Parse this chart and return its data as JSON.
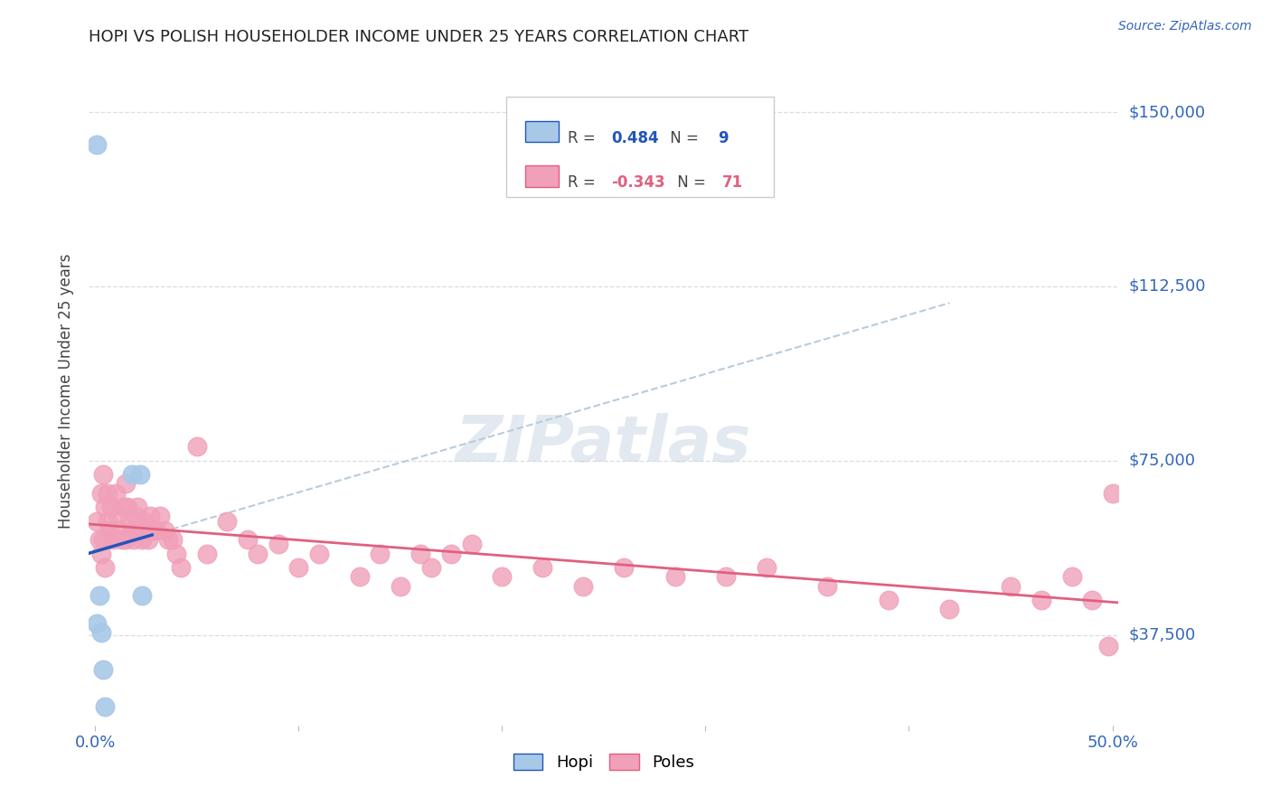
{
  "title": "HOPI VS POLISH HOUSEHOLDER INCOME UNDER 25 YEARS CORRELATION CHART",
  "source": "Source: ZipAtlas.com",
  "ylabel": "Householder Income Under 25 years",
  "ytick_labels": [
    "$37,500",
    "$75,000",
    "$112,500",
    "$150,000"
  ],
  "ytick_values": [
    37500,
    75000,
    112500,
    150000
  ],
  "ylim": [
    18000,
    162000
  ],
  "xlim": [
    -0.003,
    0.503
  ],
  "hopi_color": "#a8c8e8",
  "hopi_line_color": "#2255bb",
  "poles_color": "#f0a0b8",
  "poles_line_color": "#e06080",
  "dashed_line_color": "#b8ccdd",
  "background_color": "#ffffff",
  "grid_color": "#d8dde8",
  "hopi_scatter_x": [
    0.001,
    0.002,
    0.018,
    0.022,
    0.023,
    0.001,
    0.003,
    0.004,
    0.005
  ],
  "hopi_scatter_y": [
    143000,
    46000,
    72000,
    72000,
    46000,
    40000,
    38000,
    30000,
    22000
  ],
  "poles_scatter_x": [
    0.001,
    0.002,
    0.003,
    0.003,
    0.004,
    0.004,
    0.005,
    0.005,
    0.006,
    0.006,
    0.007,
    0.008,
    0.009,
    0.01,
    0.011,
    0.012,
    0.013,
    0.014,
    0.015,
    0.015,
    0.016,
    0.017,
    0.018,
    0.019,
    0.02,
    0.021,
    0.022,
    0.023,
    0.024,
    0.025,
    0.026,
    0.027,
    0.028,
    0.03,
    0.032,
    0.034,
    0.036,
    0.038,
    0.04,
    0.042,
    0.05,
    0.055,
    0.065,
    0.075,
    0.08,
    0.09,
    0.1,
    0.11,
    0.13,
    0.14,
    0.15,
    0.16,
    0.165,
    0.175,
    0.185,
    0.2,
    0.22,
    0.24,
    0.26,
    0.285,
    0.31,
    0.33,
    0.36,
    0.39,
    0.42,
    0.45,
    0.465,
    0.48,
    0.49,
    0.5,
    0.498
  ],
  "poles_scatter_y": [
    62000,
    58000,
    68000,
    55000,
    72000,
    58000,
    65000,
    52000,
    68000,
    62000,
    60000,
    65000,
    58000,
    68000,
    63000,
    60000,
    58000,
    65000,
    70000,
    58000,
    65000,
    62000,
    60000,
    58000,
    63000,
    65000,
    60000,
    58000,
    62000,
    60000,
    58000,
    63000,
    60000,
    60000,
    63000,
    60000,
    58000,
    58000,
    55000,
    52000,
    78000,
    55000,
    62000,
    58000,
    55000,
    57000,
    52000,
    55000,
    50000,
    55000,
    48000,
    55000,
    52000,
    55000,
    57000,
    50000,
    52000,
    48000,
    52000,
    50000,
    50000,
    52000,
    48000,
    45000,
    43000,
    48000,
    45000,
    50000,
    45000,
    68000,
    35000
  ]
}
